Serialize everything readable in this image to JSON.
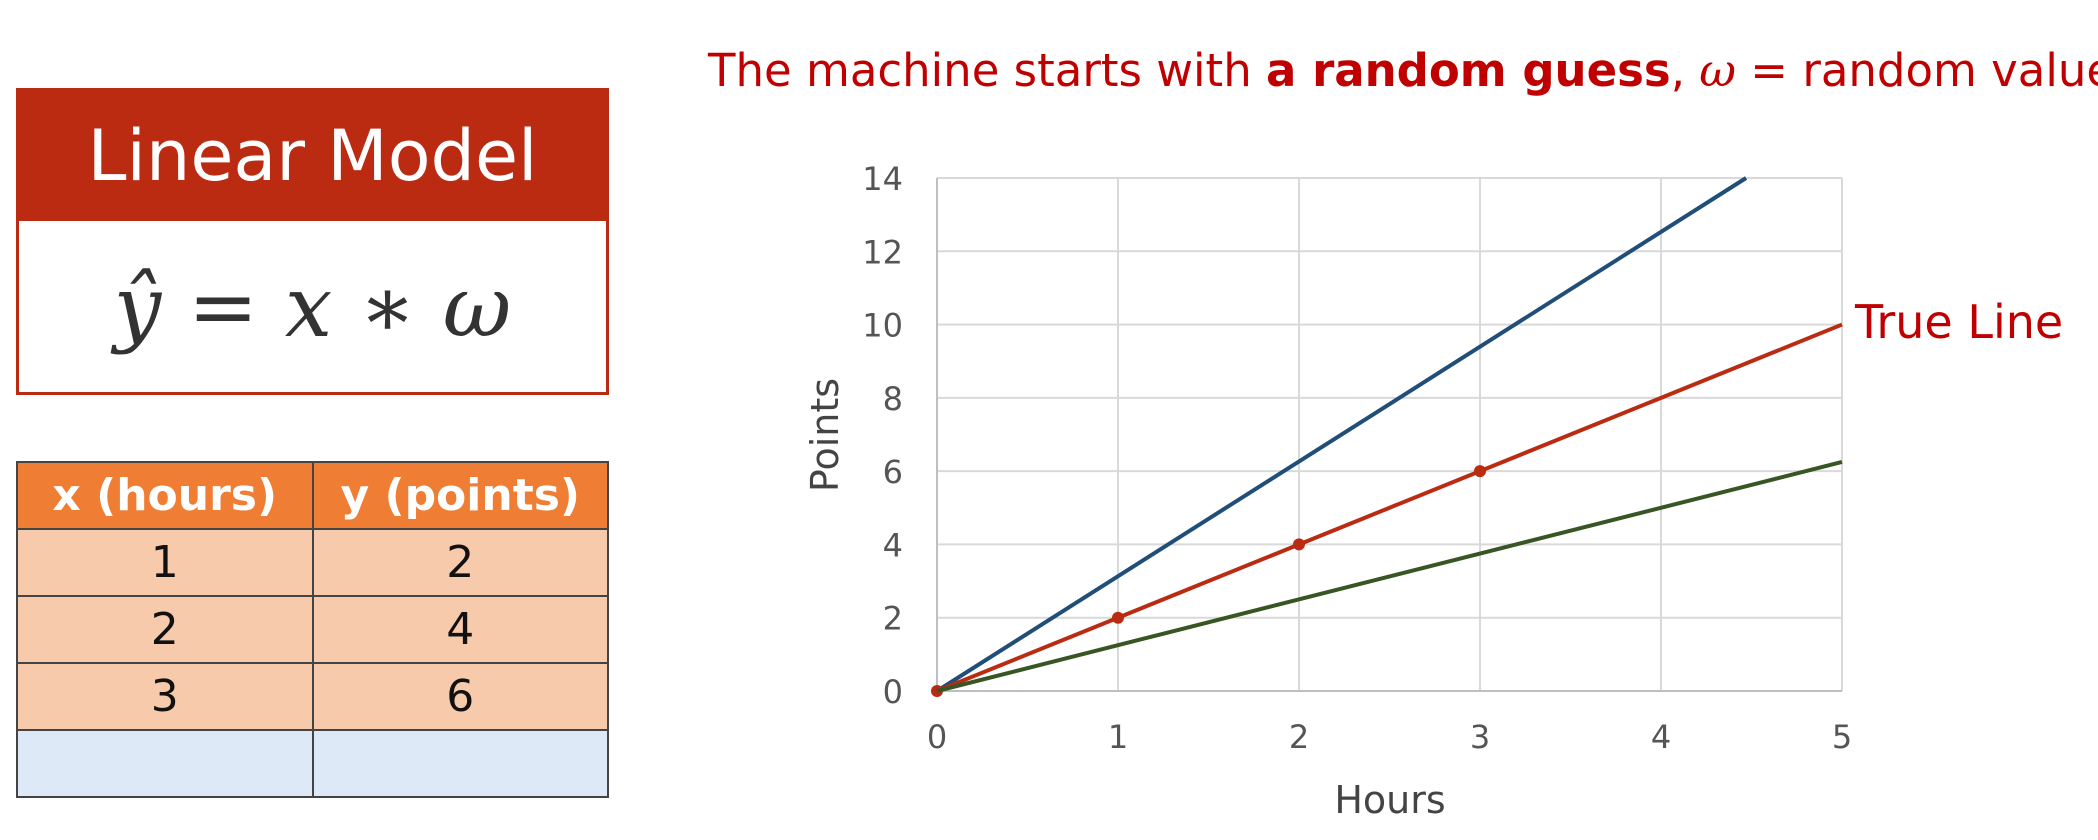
{
  "model": {
    "title": "Linear Model",
    "equation": "ŷ = x ∗ ω"
  },
  "table": {
    "headers": [
      "x (hours)",
      "y (points)"
    ],
    "rows": [
      [
        "1",
        "2"
      ],
      [
        "2",
        "4"
      ],
      [
        "3",
        "6"
      ]
    ]
  },
  "headline": {
    "before": "The machine starts with ",
    "bold": "a random guess",
    "after_comma": ", ",
    "omega": "ω",
    "rest": " = random value"
  },
  "chart_data": {
    "type": "line",
    "xlabel": "Hours",
    "ylabel": "Points",
    "xlim": [
      0,
      5
    ],
    "ylim": [
      0,
      14
    ],
    "xticks": [
      0,
      1,
      2,
      3,
      4,
      5
    ],
    "yticks": [
      0,
      2,
      4,
      6,
      8,
      10,
      12,
      14
    ],
    "grid": true,
    "series": [
      {
        "values_x": [
          0,
          4.47
        ],
        "values_y": [
          0,
          14
        ],
        "color": "#1f4e79"
      },
      {
        "name": "True Line",
        "values_x": [
          0,
          5
        ],
        "values_y": [
          0,
          10
        ],
        "color": "#ba2b12",
        "points_x": [
          0,
          1,
          2,
          3
        ],
        "points_y": [
          0,
          2,
          4,
          6
        ]
      },
      {
        "values_x": [
          0,
          5
        ],
        "values_y": [
          0,
          6.25
        ],
        "color": "#375623"
      }
    ],
    "annotation": {
      "text": "True Line",
      "color": "#c00000"
    }
  }
}
